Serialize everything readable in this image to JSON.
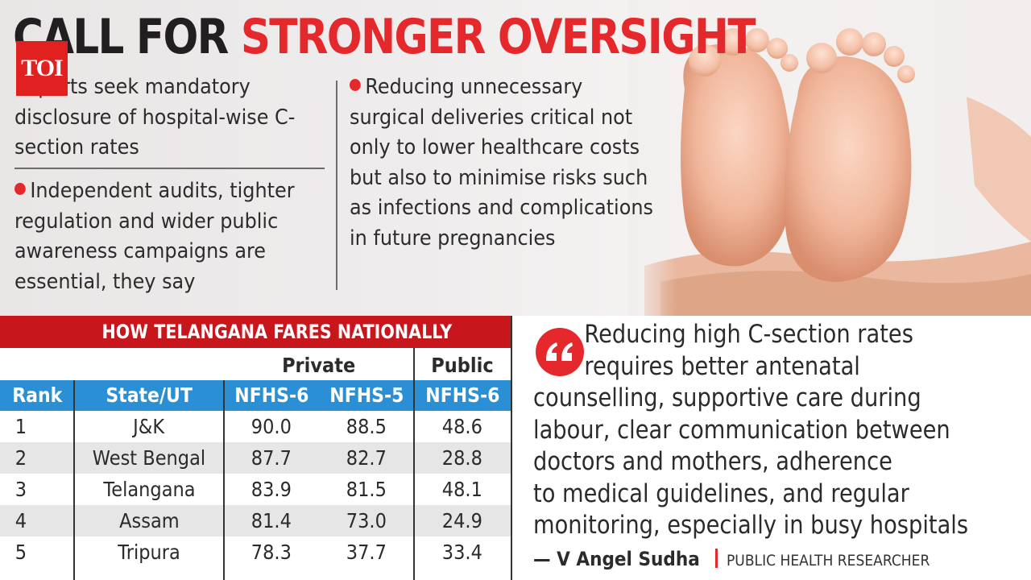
{
  "headline": {
    "part1": "CALL FOR ",
    "part2": "STRONGER OVERSIGHT"
  },
  "badge": {
    "label": "TOI"
  },
  "points": {
    "left_1": "Experts seek mandatory disclosure of hospital-wise C-section rates",
    "left_2": "Independent audits, tighter regulation and wider public awareness campaigns are essential, they say",
    "right_1": "Reducing unnecessary surgical deliveries critical not only to lower healthcare costs but also to minimise risks such as infections and complications in future pregnancies"
  },
  "table": {
    "title": "HOW TELANGANA FARES NATIONALLY",
    "group_private": "Private",
    "group_public": "Public",
    "columns": [
      "Rank",
      "State/UT",
      "NFHS-6",
      "NFHS-5",
      "NFHS-6"
    ],
    "rows": [
      [
        "1",
        "J&K",
        "90.0",
        "88.5",
        "48.6"
      ],
      [
        "2",
        "West Bengal",
        "87.7",
        "82.7",
        "28.8"
      ],
      [
        "3",
        "Telangana",
        "83.9",
        "81.5",
        "48.1"
      ],
      [
        "4",
        "Assam",
        "81.4",
        "73.0",
        "24.9"
      ],
      [
        "5",
        "Tripura",
        "78.3",
        "37.7",
        "33.4"
      ]
    ]
  },
  "quote": {
    "lines": [
      "Reducing high C-section rates",
      "requires better antenatal",
      "counselling, supportive care during",
      "labour, clear communication between",
      "doctors and mothers, adherence",
      "to medical guidelines, and regular",
      "monitoring, especially in busy hospitals"
    ],
    "author": "— V Angel Sudha",
    "role": "PUBLIC HEALTH RESEARCHER"
  },
  "icons": {
    "photo": "baby-feet-photo",
    "quote": "quote-mark-icon",
    "bullet": "red-dot-bullet-icon"
  },
  "colors": {
    "accent_red": "#e5282c",
    "table_title_bg": "#c8161d",
    "column_header_bg": "#2a8fd4",
    "row_stripe": "#e6e6e6"
  }
}
